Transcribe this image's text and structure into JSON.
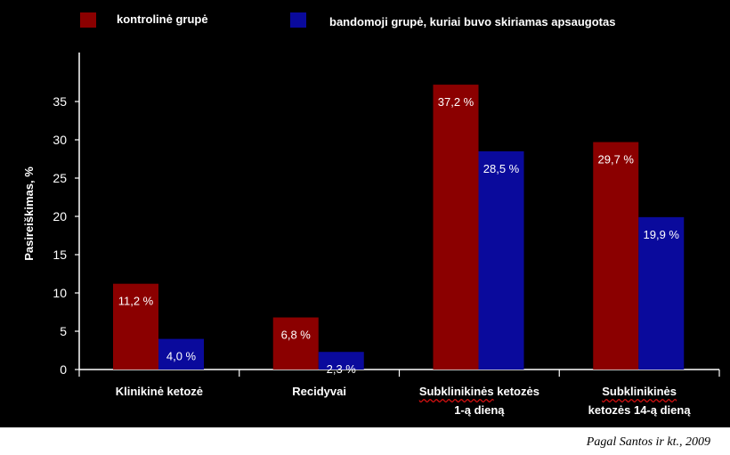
{
  "chart_data": {
    "type": "bar",
    "categories": [
      [
        "Klinikinė ketozė"
      ],
      [
        "Recidyvai"
      ],
      [
        "Subklinikinės ketozės",
        "1-ą dieną"
      ],
      [
        "Subklinikinės",
        "ketozės 14-ą dieną"
      ]
    ],
    "series": [
      {
        "name": "kontrolinė grupė",
        "color": "#8b0000",
        "values": [
          11.2,
          6.8,
          37.2,
          29.7
        ],
        "labels": [
          "11,2 %",
          "6,8 %",
          "37,2 %",
          "29,7 %"
        ]
      },
      {
        "name": "bandomoji grupė, kuriai buvo skiriamas apsaugotas",
        "color": "#0a0a9c",
        "values": [
          4.0,
          2.3,
          28.5,
          19.9
        ],
        "labels": [
          "4,0 %",
          "2,3 %",
          "28,5 %",
          "19,9 %"
        ]
      }
    ],
    "ylabel": "Pasireiškimas, %",
    "ylim": [
      0,
      40
    ],
    "yticks": [
      "0",
      "5",
      "10",
      "15",
      "20",
      "25",
      "30",
      "35"
    ],
    "grid": false,
    "legend": "top"
  },
  "source_note": "Pagal  Santos ir kt., 2009"
}
